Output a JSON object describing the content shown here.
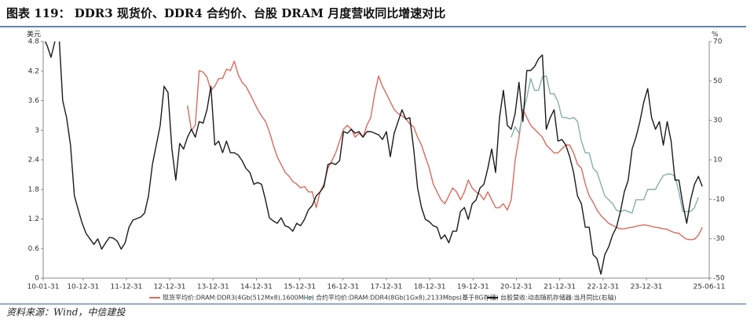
{
  "chart_data": {
    "type": "line",
    "title": "图表 119：  DDR3 现货价、DDR4 合约价、台股 DRAM 月度营收同比增速对比",
    "source": "资料来源：Wind，中信建投",
    "y_label": "美元",
    "y2_label": "%",
    "legend": "bottom",
    "xlim": [
      2010.08,
      2025.45
    ],
    "xticks": [
      {
        "value": 2010.08,
        "label": "10-01-31"
      },
      {
        "value": 2011.0,
        "label": "10-12-31"
      },
      {
        "value": 2012.0,
        "label": "11-12-31"
      },
      {
        "value": 2013.0,
        "label": "12-12-31"
      },
      {
        "value": 2014.0,
        "label": "13-12-31"
      },
      {
        "value": 2015.0,
        "label": "14-12-31"
      },
      {
        "value": 2016.0,
        "label": "15-12-31"
      },
      {
        "value": 2017.0,
        "label": "16-12-31"
      },
      {
        "value": 2018.0,
        "label": "17-12-31"
      },
      {
        "value": 2019.0,
        "label": "18-12-31"
      },
      {
        "value": 2020.0,
        "label": "19-12-31"
      },
      {
        "value": 2021.0,
        "label": "20-12-31"
      },
      {
        "value": 2022.0,
        "label": "21-12-31"
      },
      {
        "value": 2023.0,
        "label": "22-12-31"
      },
      {
        "value": 2024.0,
        "label": "23-12-31"
      },
      {
        "value": 2025.45,
        "label": "25-06-11"
      }
    ],
    "ylim": [
      0,
      4.8
    ],
    "yticks": [
      0,
      0.6,
      1.2,
      1.8,
      2.4,
      3,
      3.6,
      4.2,
      4.8
    ],
    "y2lim": [
      -50,
      70
    ],
    "y2ticks": [
      -50,
      -30,
      -10,
      10,
      30,
      50,
      70
    ],
    "x": [
      2010.08,
      2010.17,
      2010.26,
      2010.35,
      2010.44,
      2010.53,
      2010.62,
      2010.71,
      2010.8,
      2010.89,
      2010.98,
      2011.07,
      2011.16,
      2011.25,
      2011.34,
      2011.43,
      2011.52,
      2011.61,
      2011.7,
      2011.79,
      2011.88,
      2011.97,
      2012.06,
      2012.15,
      2012.24,
      2012.33,
      2012.42,
      2012.51,
      2012.6,
      2012.69,
      2012.78,
      2012.87,
      2012.96,
      2013.05,
      2013.14,
      2013.23,
      2013.32,
      2013.41,
      2013.5,
      2013.59,
      2013.68,
      2013.77,
      2013.86,
      2013.95,
      2014.04,
      2014.13,
      2014.22,
      2014.31,
      2014.4,
      2014.49,
      2014.58,
      2014.67,
      2014.76,
      2014.85,
      2014.94,
      2015.03,
      2015.12,
      2015.21,
      2015.3,
      2015.39,
      2015.48,
      2015.57,
      2015.66,
      2015.75,
      2015.84,
      2015.93,
      2016.02,
      2016.11,
      2016.2,
      2016.29,
      2016.38,
      2016.47,
      2016.56,
      2016.65,
      2016.74,
      2016.83,
      2016.92,
      2017.01,
      2017.1,
      2017.19,
      2017.28,
      2017.37,
      2017.46,
      2017.55,
      2017.64,
      2017.73,
      2017.82,
      2017.91,
      2018.0,
      2018.09,
      2018.18,
      2018.27,
      2018.36,
      2018.45,
      2018.54,
      2018.63,
      2018.72,
      2018.81,
      2018.9,
      2018.99,
      2019.08,
      2019.17,
      2019.26,
      2019.35,
      2019.44,
      2019.53,
      2019.62,
      2019.71,
      2019.8,
      2019.89,
      2019.98,
      2020.07,
      2020.16,
      2020.25,
      2020.34,
      2020.43,
      2020.52,
      2020.61,
      2020.7,
      2020.79,
      2020.88,
      2020.97,
      2021.06,
      2021.15,
      2021.24,
      2021.33,
      2021.42,
      2021.51,
      2021.6,
      2021.69,
      2021.78,
      2021.87,
      2021.96,
      2022.05,
      2022.14,
      2022.23,
      2022.32,
      2022.41,
      2022.5,
      2022.59,
      2022.68,
      2022.77,
      2022.86,
      2022.95,
      2023.04,
      2023.13,
      2023.22,
      2023.31,
      2023.4,
      2023.49,
      2023.58,
      2023.67,
      2023.76,
      2023.85,
      2023.94,
      2024.03,
      2024.12,
      2024.21,
      2024.3,
      2024.39,
      2024.48,
      2024.57,
      2024.66,
      2024.75,
      2024.84,
      2024.93,
      2025.02,
      2025.11,
      2025.2,
      2025.29
    ],
    "series": [
      {
        "name": "现货平均价:DRAM:DDR3(4Gb(512Mx8),1600MHz)",
        "color": "#d96a5c",
        "axis": "y",
        "values": [
          null,
          null,
          null,
          null,
          null,
          null,
          null,
          null,
          null,
          null,
          null,
          null,
          null,
          null,
          null,
          null,
          null,
          null,
          null,
          null,
          null,
          null,
          null,
          null,
          null,
          null,
          null,
          null,
          null,
          null,
          null,
          null,
          null,
          null,
          null,
          null,
          null,
          3.5,
          3.0,
          3.1,
          4.21,
          4.18,
          4.08,
          3.81,
          3.89,
          4.05,
          4.05,
          4.24,
          4.21,
          4.4,
          4.13,
          3.97,
          3.89,
          3.74,
          3.58,
          3.42,
          3.29,
          3.18,
          2.97,
          2.7,
          2.46,
          2.31,
          2.15,
          2.07,
          1.96,
          1.91,
          1.83,
          1.86,
          1.75,
          1.75,
          1.43,
          1.75,
          1.91,
          2.23,
          2.38,
          2.54,
          2.78,
          3.02,
          3.1,
          3.02,
          2.86,
          2.94,
          2.86,
          3.1,
          3.26,
          3.74,
          4.1,
          3.89,
          3.74,
          3.58,
          3.42,
          3.34,
          3.29,
          3.23,
          3.13,
          3.07,
          2.86,
          2.7,
          2.46,
          2.23,
          1.91,
          1.75,
          1.59,
          1.51,
          1.67,
          1.83,
          1.75,
          1.59,
          1.75,
          1.99,
          1.83,
          1.75,
          1.7,
          1.59,
          1.75,
          1.59,
          1.43,
          1.43,
          1.51,
          1.38,
          1.59,
          2.38,
          2.86,
          3.42,
          3.26,
          3.1,
          3.02,
          2.94,
          2.86,
          2.7,
          2.62,
          2.54,
          2.54,
          2.62,
          2.7,
          2.7,
          2.54,
          2.31,
          2.23,
          1.91,
          1.67,
          1.54,
          1.38,
          1.27,
          1.19,
          1.11,
          1.07,
          1.03,
          1.0,
          1.0,
          1.02,
          1.03,
          1.05,
          1.07,
          1.08,
          1.07,
          1.05,
          1.03,
          1.02,
          1.0,
          0.99,
          0.95,
          0.92,
          0.91,
          0.84,
          0.79,
          0.78,
          0.79,
          0.87,
          1.03
        ]
      },
      {
        "name": "合约平均价:DRAM:DDR4(8Gb(1Gx8),2133Mbps(基于8G存储)",
        "color": "#86aeae",
        "axis": "y",
        "values": [
          null,
          null,
          null,
          null,
          null,
          null,
          null,
          null,
          null,
          null,
          null,
          null,
          null,
          null,
          null,
          null,
          null,
          null,
          null,
          null,
          null,
          null,
          null,
          null,
          null,
          null,
          null,
          null,
          null,
          null,
          null,
          null,
          null,
          null,
          null,
          null,
          null,
          null,
          null,
          null,
          null,
          null,
          null,
          null,
          null,
          null,
          null,
          null,
          null,
          null,
          null,
          null,
          null,
          null,
          null,
          null,
          null,
          null,
          null,
          null,
          null,
          null,
          null,
          null,
          null,
          null,
          null,
          null,
          null,
          null,
          null,
          null,
          null,
          null,
          null,
          null,
          null,
          null,
          null,
          null,
          null,
          null,
          null,
          null,
          null,
          null,
          null,
          null,
          null,
          null,
          null,
          null,
          null,
          null,
          null,
          null,
          null,
          null,
          null,
          null,
          null,
          null,
          null,
          null,
          null,
          null,
          null,
          null,
          null,
          null,
          null,
          null,
          null,
          null,
          null,
          null,
          null,
          null,
          null,
          null,
          2.86,
          3.07,
          2.94,
          3.34,
          3.66,
          4.05,
          3.81,
          3.81,
          4.08,
          4.1,
          3.74,
          3.74,
          3.58,
          3.26,
          3.26,
          3.23,
          3.26,
          3.18,
          2.78,
          2.54,
          2.54,
          2.23,
          2.15,
          1.91,
          1.67,
          1.59,
          1.51,
          1.38,
          1.35,
          1.38,
          1.35,
          1.32,
          1.59,
          1.59,
          1.59,
          1.8,
          1.8,
          1.8,
          1.95,
          2.08,
          2.11,
          2.11,
          2.07,
          1.75,
          1.35,
          1.35,
          1.35,
          1.43,
          1.64,
          null
        ]
      },
      {
        "name": "台股营收:动态随机存储器:当月同比(右轴)",
        "color": "#1a1a1a",
        "axis": "y2",
        "values": [
          72,
          68,
          62,
          70,
          75,
          40,
          31.4,
          17.5,
          -8.3,
          -15.4,
          -22.2,
          -27.4,
          -30.1,
          -32.9,
          -30.1,
          -35.3,
          -32.1,
          -29.3,
          -29.7,
          -31.3,
          -35.3,
          -32.1,
          -24.2,
          -20.6,
          -19.8,
          -19.0,
          -17.0,
          -8.3,
          7.6,
          17.5,
          27.5,
          47.3,
          44.1,
          15.5,
          -0.3,
          18.3,
          15.5,
          21.5,
          25.5,
          21.5,
          29.4,
          28.6,
          35.4,
          47.3,
          17.5,
          19.5,
          13.6,
          19.5,
          13.6,
          13.6,
          12.4,
          9.6,
          5.6,
          3.6,
          -2.4,
          -1.5,
          -2.4,
          -10.3,
          -19.4,
          -21.0,
          -22.2,
          -19.4,
          -23.4,
          -24.2,
          -26.2,
          -22.2,
          -23.4,
          -20.2,
          -15.4,
          -13.1,
          -8.3,
          -6.3,
          -3.5,
          7.6,
          8.4,
          7.6,
          9.6,
          24.3,
          23.5,
          25.5,
          23.5,
          24.3,
          21.5,
          24.3,
          24.3,
          23.5,
          22.7,
          20.3,
          24.3,
          11.6,
          23.5,
          29.4,
          35.4,
          30.6,
          31.4,
          15.5,
          -4.3,
          -14.2,
          -20.2,
          -21.4,
          -23.4,
          -24.2,
          -30.1,
          -28.1,
          -32.1,
          -26.2,
          -26.2,
          -16.2,
          -14.2,
          -20.2,
          -12.3,
          -10.3,
          -4.3,
          -2.4,
          5.6,
          15.5,
          3.6,
          31.4,
          45.3,
          27.5,
          25.5,
          33.4,
          49.3,
          29.4,
          55.3,
          55.3,
          57.3,
          61.2,
          63.2,
          25.5,
          31.4,
          35.4,
          19.5,
          20.3,
          17.5,
          11.6,
          3.6,
          -8.3,
          -12.3,
          -24.2,
          -24.2,
          -38.1,
          -40.1,
          -48.0,
          -38.1,
          -34.1,
          -28.1,
          -24.2,
          -16.2,
          -6.3,
          -0.3,
          15.5,
          21.5,
          29.4,
          39.4,
          46.1,
          31.4,
          25.5,
          29.4,
          17.5,
          29.4,
          19.5,
          -0.3,
          -0.3,
          -12.3,
          -22.2,
          -10.3,
          -2.4,
          1.6,
          -3.5
        ]
      }
    ]
  }
}
